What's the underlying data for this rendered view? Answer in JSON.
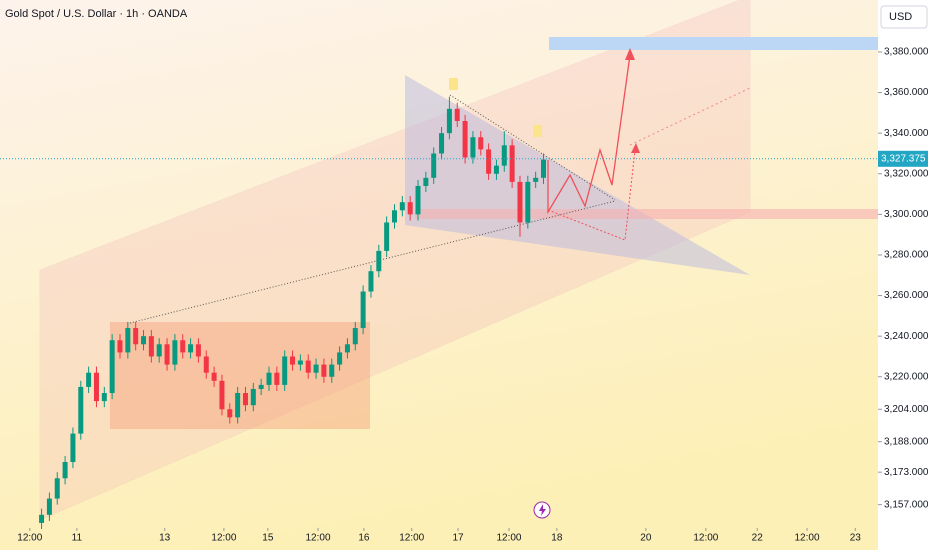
{
  "chart_data": {
    "type": "candlestick",
    "title": "Gold Spot / U.S. Dollar · 1h · OANDA",
    "currency": "USD",
    "x": [
      3,
      5,
      7,
      9,
      11,
      13,
      15,
      17,
      19,
      21,
      23,
      25,
      27,
      29,
      31,
      33,
      35,
      37,
      39,
      41,
      43,
      45,
      47,
      49,
      51,
      53,
      55,
      57,
      59,
      61,
      63,
      65,
      67,
      69,
      71,
      73,
      75,
      77,
      79,
      81,
      83,
      85,
      87,
      89,
      91,
      93,
      95,
      97,
      99,
      101,
      103,
      105,
      107,
      109,
      111,
      113,
      115,
      117,
      119,
      121,
      123,
      125,
      127,
      129,
      131
    ],
    "open": [
      3148,
      3152,
      3160,
      3170,
      3178,
      3192,
      3215,
      3222,
      3208,
      3212,
      3238,
      3232,
      3244,
      3236,
      3240,
      3230,
      3236,
      3226,
      3238,
      3232,
      3236,
      3230,
      3222,
      3218,
      3204,
      3200,
      3212,
      3206,
      3214,
      3216,
      3222,
      3216,
      3230,
      3226,
      3228,
      3222,
      3226,
      3220,
      3226,
      3232,
      3236,
      3244,
      3262,
      3272,
      3282,
      3296,
      3302,
      3306,
      3300,
      3314,
      3318,
      3330,
      3340,
      3352,
      3346,
      3328,
      3338,
      3332,
      3320,
      3324,
      3334,
      3316,
      3296,
      3316,
      3318
    ],
    "high": [
      3155,
      3163,
      3173,
      3181,
      3195,
      3218,
      3225,
      3225,
      3215,
      3241,
      3241,
      3247,
      3247,
      3243,
      3243,
      3239,
      3239,
      3241,
      3241,
      3239,
      3239,
      3233,
      3225,
      3221,
      3207,
      3215,
      3215,
      3217,
      3219,
      3225,
      3225,
      3233,
      3233,
      3231,
      3231,
      3229,
      3229,
      3229,
      3235,
      3239,
      3247,
      3265,
      3275,
      3285,
      3299,
      3305,
      3309,
      3309,
      3317,
      3321,
      3333,
      3343,
      3358,
      3355,
      3349,
      3341,
      3341,
      3335,
      3327,
      3341,
      3337,
      3319,
      3319,
      3321,
      3330
    ],
    "low": [
      3145,
      3149,
      3157,
      3167,
      3175,
      3189,
      3212,
      3205,
      3205,
      3209,
      3229,
      3229,
      3233,
      3233,
      3227,
      3227,
      3223,
      3223,
      3229,
      3229,
      3227,
      3219,
      3215,
      3201,
      3197,
      3197,
      3203,
      3203,
      3211,
      3213,
      3213,
      3213,
      3223,
      3223,
      3219,
      3219,
      3217,
      3217,
      3223,
      3229,
      3233,
      3241,
      3259,
      3269,
      3279,
      3293,
      3299,
      3297,
      3297,
      3311,
      3315,
      3327,
      3337,
      3343,
      3325,
      3325,
      3329,
      3317,
      3317,
      3321,
      3313,
      3289,
      3293,
      3313,
      3315
    ],
    "close": [
      3152,
      3160,
      3170,
      3178,
      3192,
      3215,
      3222,
      3208,
      3212,
      3238,
      3232,
      3244,
      3236,
      3240,
      3230,
      3236,
      3226,
      3238,
      3232,
      3236,
      3230,
      3222,
      3218,
      3204,
      3200,
      3212,
      3206,
      3214,
      3216,
      3222,
      3216,
      3230,
      3226,
      3228,
      3222,
      3226,
      3220,
      3226,
      3232,
      3236,
      3244,
      3262,
      3272,
      3282,
      3296,
      3302,
      3306,
      3300,
      3314,
      3318,
      3330,
      3340,
      3352,
      3346,
      3328,
      3338,
      3332,
      3320,
      3324,
      3334,
      3316,
      3296,
      3316,
      3318,
      3327
    ],
    "up_color": "#089981",
    "down_color": "#f23645",
    "xlim": [
      -7.6,
      216.3
    ],
    "xticks": [
      {
        "value": 0,
        "label": "12:00"
      },
      {
        "value": 12,
        "label": "11"
      },
      {
        "value": 34.4,
        "label": "13"
      },
      {
        "value": 49.5,
        "label": "12:00"
      },
      {
        "value": 60.7,
        "label": "15"
      },
      {
        "value": 73.5,
        "label": "12:00"
      },
      {
        "value": 85.2,
        "label": "16"
      },
      {
        "value": 97.4,
        "label": "12:00"
      },
      {
        "value": 109.2,
        "label": "17"
      },
      {
        "value": 122.2,
        "label": "12:00"
      },
      {
        "value": 134.4,
        "label": "18"
      },
      {
        "value": 157.1,
        "label": "20"
      },
      {
        "value": 172.4,
        "label": "12:00"
      },
      {
        "value": 185.5,
        "label": "22"
      },
      {
        "value": 198.2,
        "label": "12:00"
      },
      {
        "value": 210.5,
        "label": "23"
      }
    ],
    "ylim": [
      3145.5,
      3405.6
    ],
    "yticks": [
      {
        "value": 3157,
        "label": "3,157.000"
      },
      {
        "value": 3173,
        "label": "3,173.000"
      },
      {
        "value": 3188,
        "label": "3,188.000"
      },
      {
        "value": 3204,
        "label": "3,204.000"
      },
      {
        "value": 3220,
        "label": "3,220.000"
      },
      {
        "value": 3240,
        "label": "3,240.000"
      },
      {
        "value": 3260,
        "label": "3,260.000"
      },
      {
        "value": 3280,
        "label": "3,280.000"
      },
      {
        "value": 3300,
        "label": "3,300.000"
      },
      {
        "value": 3320,
        "label": "3,320.000"
      },
      {
        "value": 3340,
        "label": "3,340.000"
      },
      {
        "value": 3360,
        "label": "3,360.000"
      },
      {
        "value": 3380,
        "label": "3,380.000"
      }
    ],
    "last_price": {
      "value": 3327.375,
      "label": "3,327.375"
    },
    "last_price_color": "#22a6c3"
  }
}
